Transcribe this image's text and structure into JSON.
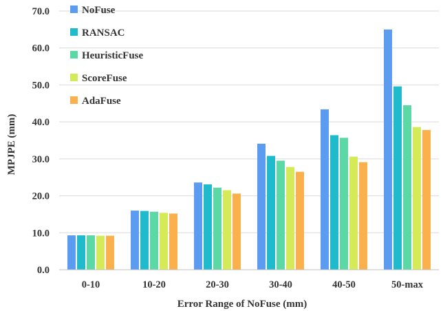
{
  "chart_data": {
    "type": "bar",
    "xlabel": "Error Range of NoFuse (mm)",
    "ylabel": "MPJPE (mm)",
    "categories": [
      "0-10",
      "10-20",
      "20-30",
      "30-40",
      "40-50",
      "50-max"
    ],
    "ylim": [
      0,
      70
    ],
    "yticks": [
      "0.0",
      "10.0",
      "20.0",
      "30.0",
      "40.0",
      "50.0",
      "60.0",
      "70.0"
    ],
    "grid": true,
    "legend_position": "top-left",
    "series": [
      {
        "name": "NoFuse",
        "color": "#5B9CF0",
        "values": [
          9.3,
          16.0,
          23.6,
          34.1,
          43.4,
          65.0
        ]
      },
      {
        "name": "RANSAC",
        "color": "#1FBACB",
        "values": [
          9.3,
          15.9,
          23.1,
          30.8,
          36.4,
          49.6
        ]
      },
      {
        "name": "HeuristicFuse",
        "color": "#5CD7A6",
        "values": [
          9.3,
          15.7,
          22.2,
          29.5,
          35.7,
          44.5
        ]
      },
      {
        "name": "ScoreFuse",
        "color": "#D4EA59",
        "values": [
          9.2,
          15.4,
          21.5,
          27.8,
          30.6,
          38.6
        ]
      },
      {
        "name": "AdaFuse",
        "color": "#F9B04D",
        "values": [
          9.2,
          15.2,
          20.6,
          26.5,
          29.1,
          37.8
        ]
      }
    ]
  }
}
